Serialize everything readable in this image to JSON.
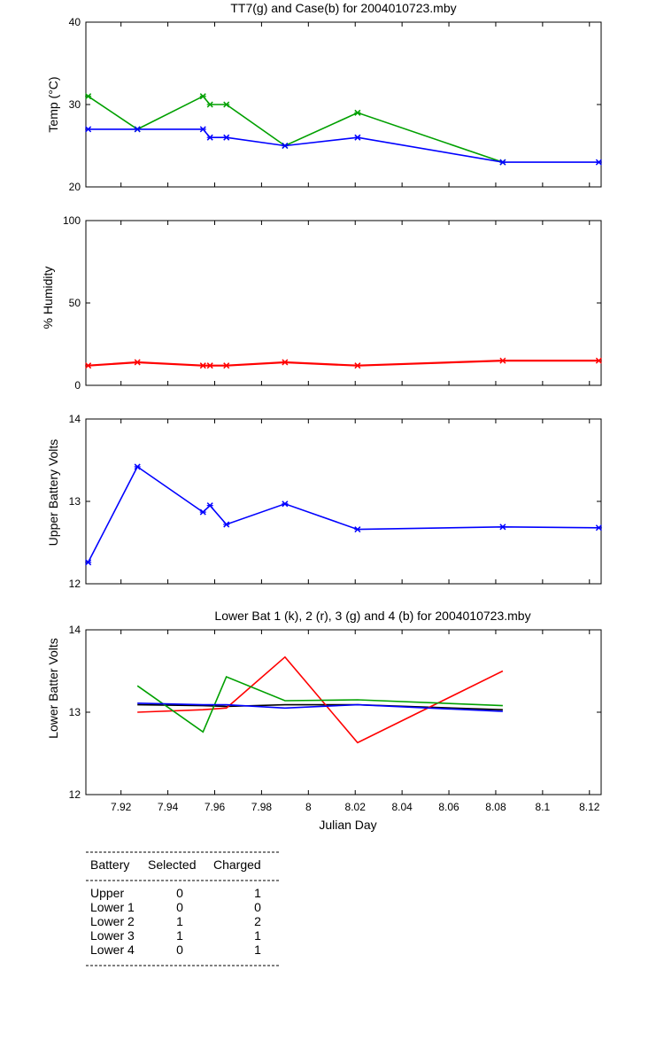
{
  "chart_data": [
    {
      "type": "line",
      "title": "TT7(g) and Case(b) for 2004010723.mby",
      "xlabel": "",
      "ylabel": "Temp  (°C)",
      "xlim": [
        7.905,
        8.125
      ],
      "ylim": [
        20,
        40
      ],
      "yticks": [
        "20",
        "30",
        "40"
      ],
      "grid": false,
      "series": [
        {
          "color": "#00a000",
          "x": [
            7.906,
            7.927,
            7.955,
            7.958,
            7.965,
            7.99,
            8.021,
            8.083
          ],
          "y": [
            31,
            27,
            31,
            30,
            30,
            25,
            29,
            23
          ]
        },
        {
          "color": "#0000ff",
          "x": [
            7.906,
            7.927,
            7.955,
            7.958,
            7.965,
            7.99,
            8.021,
            8.083,
            8.124
          ],
          "y": [
            27,
            27,
            27,
            26,
            26,
            25,
            26,
            23,
            23
          ]
        }
      ]
    },
    {
      "type": "line",
      "title": "",
      "xlabel": "",
      "ylabel": "% Humidity",
      "xlim": [
        7.905,
        8.125
      ],
      "ylim": [
        0,
        100
      ],
      "yticks": [
        "0",
        "50",
        "100"
      ],
      "grid": false,
      "series": [
        {
          "color": "#ff0000",
          "x": [
            7.906,
            7.927,
            7.955,
            7.958,
            7.965,
            7.99,
            8.021,
            8.083,
            8.124
          ],
          "y": [
            12,
            14,
            12,
            12,
            12,
            14,
            12,
            15,
            15
          ]
        }
      ]
    },
    {
      "type": "line",
      "title": "",
      "xlabel": "",
      "ylabel": "Upper Battery Volts",
      "xlim": [
        7.905,
        8.125
      ],
      "ylim": [
        12,
        14
      ],
      "yticks": [
        "12",
        "13",
        "14"
      ],
      "grid": false,
      "series": [
        {
          "color": "#0000ff",
          "x": [
            7.906,
            7.927,
            7.955,
            7.958,
            7.965,
            7.99,
            8.021,
            8.083,
            8.124
          ],
          "y": [
            12.26,
            13.42,
            12.87,
            12.95,
            12.72,
            12.97,
            12.66,
            12.69,
            12.68
          ]
        }
      ]
    },
    {
      "type": "line",
      "title": "Lower Bat 1 (k), 2 (r), 3 (g) and 4 (b) for 2004010723.mby",
      "xlabel": "Julian Day",
      "ylabel": "Lower Batter Volts",
      "xlim": [
        7.905,
        8.125
      ],
      "ylim": [
        12,
        14
      ],
      "yticks": [
        "12",
        "13",
        "14"
      ],
      "xticks": [
        "7.92",
        "7.94",
        "7.96",
        "7.98",
        "8",
        "8.02",
        "8.04",
        "8.06",
        "8.08",
        "8.1",
        "8.12"
      ],
      "grid": false,
      "series": [
        {
          "color": "#000000",
          "x": [
            7.927,
            7.955,
            7.965,
            7.99,
            8.021,
            8.083
          ],
          "y": [
            13.09,
            13.08,
            13.07,
            13.09,
            13.09,
            13.03
          ]
        },
        {
          "color": "#ff0000",
          "x": [
            7.927,
            7.955,
            7.965,
            7.99,
            8.021,
            8.083
          ],
          "y": [
            13.0,
            13.03,
            13.05,
            13.67,
            12.63,
            13.5
          ]
        },
        {
          "color": "#00a000",
          "x": [
            7.927,
            7.955,
            7.965,
            7.99,
            8.021,
            8.083
          ],
          "y": [
            13.32,
            12.76,
            13.43,
            13.14,
            13.15,
            13.08
          ]
        },
        {
          "color": "#0000ff",
          "x": [
            7.927,
            7.955,
            7.965,
            7.99,
            8.021,
            8.083
          ],
          "y": [
            13.11,
            13.09,
            13.09,
            13.05,
            13.09,
            13.01
          ]
        }
      ]
    }
  ],
  "battery_table": {
    "headers": [
      "Battery",
      "Selected",
      "Charged"
    ],
    "rows": [
      [
        "Upper",
        "0",
        "1"
      ],
      [
        "Lower 1",
        "0",
        "0"
      ],
      [
        "Lower 2",
        "1",
        "2"
      ],
      [
        "Lower 3",
        "1",
        "1"
      ],
      [
        "Lower 4",
        "0",
        "1"
      ]
    ]
  }
}
